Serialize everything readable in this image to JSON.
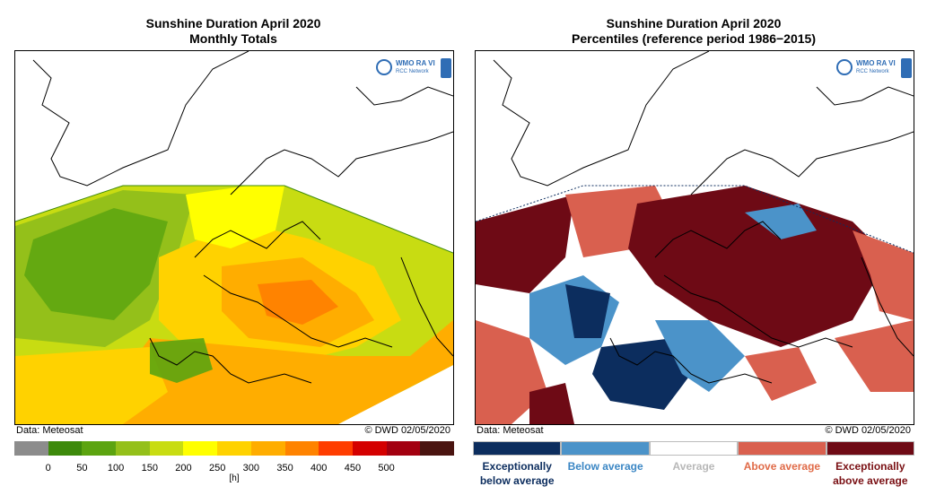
{
  "left_panel": {
    "title_line1": "Sunshine Duration April 2020",
    "title_line2": "Monthly Totals",
    "source": "Data: Meteosat",
    "credit": "© DWD 02/05/2020",
    "logo_text_top": "WMO RA VI",
    "logo_text_bottom": "RCC Network",
    "legend": {
      "colors": [
        "#8c8c8c",
        "#3d8a0b",
        "#5ca410",
        "#94c01a",
        "#c8dc12",
        "#ffff00",
        "#ffd200",
        "#ffad00",
        "#ff8300",
        "#ff3d00",
        "#d40000",
        "#a30010",
        "#4a1410"
      ],
      "ticks": [
        "0",
        "50",
        "100",
        "150",
        "200",
        "250",
        "300",
        "350",
        "400",
        "450",
        "500"
      ],
      "unit": "[h]"
    }
  },
  "right_panel": {
    "title_line1": "Sunshine Duration April 2020",
    "title_line2": "Percentiles (reference period 1986−2015)",
    "source": "Data: Meteosat",
    "credit": "© DWD 02/05/2020",
    "logo_text_top": "WMO RA VI",
    "logo_text_bottom": "RCC Network",
    "legend": {
      "categories": [
        {
          "line1": "Exceptionally",
          "line2": "below average",
          "color": "#0c2d5e",
          "text_color": "#0c2d5e"
        },
        {
          "line1": "Below average",
          "line2": "",
          "color": "#4b93c9",
          "text_color": "#3a86c4"
        },
        {
          "line1": "Average",
          "line2": "",
          "color": "#ffffff",
          "text_color": "#b8b8b8"
        },
        {
          "line1": "Above average",
          "line2": "",
          "color": "#d9604f",
          "text_color": "#e06a47"
        },
        {
          "line1": "Exceptionally",
          "line2": "above average",
          "color": "#6e0a15",
          "text_color": "#7a1014"
        }
      ]
    }
  }
}
